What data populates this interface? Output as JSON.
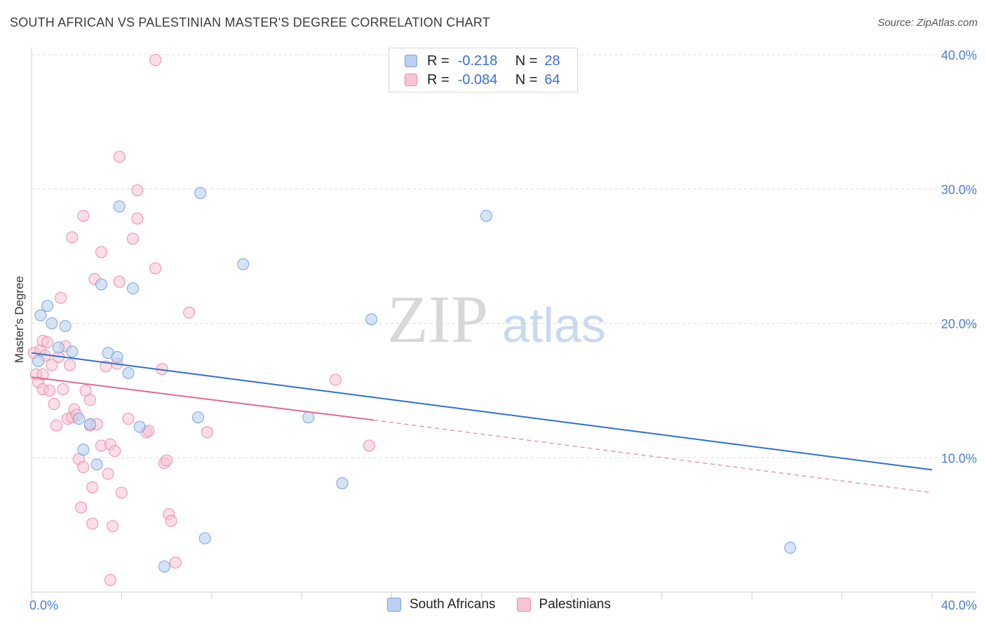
{
  "header": {
    "title": "SOUTH AFRICAN VS PALESTINIAN MASTER'S DEGREE CORRELATION CHART",
    "source": "Source: ZipAtlas.com"
  },
  "watermark": {
    "zip": "ZIP",
    "atlas": "atlas"
  },
  "colors": {
    "blue_fill": "#b9d0f2",
    "blue_stroke": "#7aa3dc",
    "blue_line": "#2f6fd0",
    "pink_fill": "#f8c3d4",
    "pink_stroke": "#e98fab",
    "pink_line": "#e06892",
    "axis_text": "#4a7fd4",
    "grid": "#dcdcdc"
  },
  "legend": {
    "rows": [
      {
        "r_label": "R =",
        "r_value": "-0.218",
        "n_label": "N =",
        "n_value": "28"
      },
      {
        "r_label": "R =",
        "r_value": "-0.084",
        "n_label": "N =",
        "n_value": "64"
      }
    ]
  },
  "bottom_legend": {
    "items": [
      "South Africans",
      "Palestinians"
    ]
  },
  "chart_data": {
    "type": "scatter",
    "title": "SOUTH AFRICAN VS PALESTINIAN MASTER'S DEGREE CORRELATION CHART",
    "xlabel": "",
    "ylabel": "Master's Degree",
    "xlim": [
      0,
      40
    ],
    "ylim": [
      0,
      40
    ],
    "x_tick_labels": [
      "0.0%",
      "40.0%"
    ],
    "y_ticks": [
      10,
      20,
      30,
      40
    ],
    "y_tick_labels": [
      "10.0%",
      "20.0%",
      "30.0%",
      "40.0%"
    ],
    "grid": true,
    "legend_position": "top-center",
    "series": [
      {
        "name": "South Africans",
        "R": -0.218,
        "N": 28,
        "trend": {
          "x": [
            0,
            40
          ],
          "y": [
            17.8,
            9.1
          ],
          "dashed_to": null
        },
        "points": [
          [
            0.3,
            17.2
          ],
          [
            0.4,
            20.6
          ],
          [
            0.7,
            21.3
          ],
          [
            0.9,
            20.0
          ],
          [
            1.2,
            18.2
          ],
          [
            1.5,
            19.8
          ],
          [
            1.8,
            17.9
          ],
          [
            2.1,
            12.9
          ],
          [
            2.3,
            10.6
          ],
          [
            2.6,
            12.5
          ],
          [
            2.9,
            9.5
          ],
          [
            3.1,
            22.9
          ],
          [
            3.4,
            17.8
          ],
          [
            3.8,
            17.5
          ],
          [
            3.9,
            28.7
          ],
          [
            4.3,
            16.3
          ],
          [
            4.5,
            22.6
          ],
          [
            4.8,
            12.3
          ],
          [
            5.9,
            1.9
          ],
          [
            7.5,
            29.7
          ],
          [
            7.4,
            13.0
          ],
          [
            7.7,
            4.0
          ],
          [
            9.4,
            24.4
          ],
          [
            12.3,
            13.0
          ],
          [
            13.8,
            8.1
          ],
          [
            15.1,
            20.3
          ],
          [
            20.2,
            28.0
          ],
          [
            33.7,
            3.3
          ]
        ]
      },
      {
        "name": "Palestinians",
        "R": -0.084,
        "N": 64,
        "trend": {
          "x": [
            0,
            15.2
          ],
          "y": [
            16.0,
            12.8
          ],
          "dashed_x": [
            15.2,
            40
          ],
          "dashed_y": [
            12.8,
            7.4
          ]
        },
        "points": [
          [
            0.1,
            17.8
          ],
          [
            0.2,
            16.2
          ],
          [
            0.3,
            15.6
          ],
          [
            0.4,
            18.0
          ],
          [
            0.5,
            18.7
          ],
          [
            0.5,
            15.1
          ],
          [
            0.6,
            17.6
          ],
          [
            0.7,
            18.6
          ],
          [
            0.8,
            15.0
          ],
          [
            0.9,
            16.9
          ],
          [
            1.0,
            14.0
          ],
          [
            1.1,
            12.4
          ],
          [
            1.2,
            17.5
          ],
          [
            1.3,
            21.9
          ],
          [
            1.4,
            15.1
          ],
          [
            1.5,
            18.3
          ],
          [
            1.6,
            12.9
          ],
          [
            1.7,
            16.9
          ],
          [
            1.8,
            26.4
          ],
          [
            1.8,
            13.0
          ],
          [
            1.9,
            13.6
          ],
          [
            2.0,
            13.2
          ],
          [
            2.1,
            9.9
          ],
          [
            2.2,
            6.3
          ],
          [
            2.3,
            9.3
          ],
          [
            2.3,
            28.0
          ],
          [
            2.4,
            15.0
          ],
          [
            2.6,
            14.3
          ],
          [
            2.6,
            12.4
          ],
          [
            2.7,
            7.8
          ],
          [
            2.7,
            5.1
          ],
          [
            2.8,
            23.3
          ],
          [
            2.9,
            12.5
          ],
          [
            3.1,
            10.9
          ],
          [
            3.1,
            25.3
          ],
          [
            3.3,
            16.8
          ],
          [
            3.4,
            8.8
          ],
          [
            3.5,
            0.9
          ],
          [
            3.5,
            11.0
          ],
          [
            3.6,
            4.9
          ],
          [
            3.7,
            10.5
          ],
          [
            3.8,
            17.0
          ],
          [
            3.9,
            32.4
          ],
          [
            3.9,
            23.1
          ],
          [
            4.0,
            7.4
          ],
          [
            4.3,
            12.9
          ],
          [
            4.5,
            26.3
          ],
          [
            4.7,
            29.9
          ],
          [
            4.7,
            27.8
          ],
          [
            5.1,
            11.9
          ],
          [
            5.2,
            12.0
          ],
          [
            5.5,
            24.1
          ],
          [
            5.5,
            39.6
          ],
          [
            5.8,
            16.6
          ],
          [
            5.9,
            9.6
          ],
          [
            6.0,
            9.8
          ],
          [
            6.1,
            5.8
          ],
          [
            6.2,
            5.3
          ],
          [
            6.4,
            2.2
          ],
          [
            7.0,
            20.8
          ],
          [
            7.8,
            11.9
          ],
          [
            13.5,
            15.8
          ],
          [
            15.0,
            10.9
          ],
          [
            0.5,
            16.2
          ]
        ]
      }
    ]
  }
}
